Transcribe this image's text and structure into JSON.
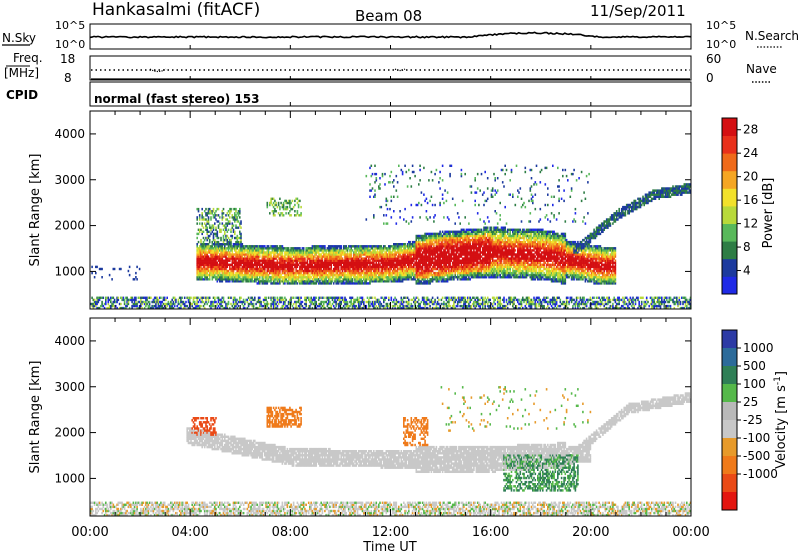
{
  "header": {
    "station": "Hankasalmi (fitACF)",
    "beam": "Beam 08",
    "date": "11/Sep/2011"
  },
  "strip_labels": {
    "nsky": "N.Sky",
    "freq_line1": "Freq.",
    "freq_line2": "[MHz]",
    "cpid": "CPID",
    "nsearch": "N.Search",
    "nave": "Nave",
    "nsky_tick_top": "10^5",
    "nsky_tick_bottom": "10^0",
    "freq_tick_top": "18",
    "freq_tick_bottom": "8",
    "nave_tick_top": "60",
    "nave_tick_bottom": "0",
    "cpid_text": "normal (fast stereo) 153"
  },
  "colors": {
    "power_scale": [
      "#1f2ae6",
      "#1c3a9e",
      "#2e7d45",
      "#58b85a",
      "#b8d93a",
      "#f2e12b",
      "#f5a623",
      "#ef6a1a",
      "#e8301b",
      "#d40f12"
    ],
    "velocity_scale": [
      "#2c3aa5",
      "#2c6b9a",
      "#2f7f56",
      "#55b84a",
      "#b9b9b9",
      "#c8c8c8",
      "#e79a2a",
      "#ef7a1a",
      "#ea4a16",
      "#e3150f"
    ]
  },
  "chart_data": [
    {
      "type": "heatmap",
      "panel": "power",
      "ylabel": "Slant Range [km]",
      "xlabel": "Time UT",
      "xlim": [
        0,
        24
      ],
      "ylim": [
        180,
        4500
      ],
      "xticks": [
        "00:00",
        "04:00",
        "08:00",
        "12:00",
        "16:00",
        "20:00",
        "00:00"
      ],
      "yticks": [
        1000,
        2000,
        3000,
        4000
      ],
      "colorbar": {
        "label": "Power [dB]",
        "ticks": [
          4,
          8,
          12,
          16,
          20,
          24,
          28
        ],
        "range": [
          0,
          30
        ]
      },
      "features": [
        {
          "name": "main echo band",
          "x": [
            4.5,
            8,
            12,
            14,
            16,
            18,
            20.5
          ],
          "y": [
            1200,
            1100,
            1150,
            1300,
            1400,
            1350,
            1100
          ]
        },
        {
          "name": "upper rising band",
          "x": [
            19.5,
            21,
            22.5,
            24
          ],
          "y": [
            1500,
            2200,
            2650,
            2800
          ]
        },
        {
          "name": "near-range clutter",
          "x": [
            0,
            24
          ],
          "y": [
            300,
            300
          ]
        }
      ]
    },
    {
      "type": "heatmap",
      "panel": "velocity",
      "ylabel": "Slant Range [km]",
      "xlabel": "Time UT",
      "xlim": [
        0,
        24
      ],
      "ylim": [
        180,
        4500
      ],
      "xticks": [
        "00:00",
        "04:00",
        "08:00",
        "12:00",
        "16:00",
        "20:00",
        "00:00"
      ],
      "yticks": [
        1000,
        2000,
        3000,
        4000
      ],
      "colorbar": {
        "label": "Velocity [m s^-1]",
        "ticks": [
          "1000",
          "500",
          "100",
          "25",
          "-25",
          "-100",
          "-500",
          "-1000"
        ]
      },
      "features": [
        {
          "name": "ground scatter band",
          "x": [
            4,
            8,
            12,
            16,
            19.5
          ],
          "y": [
            1900,
            1450,
            1400,
            1400,
            1500
          ]
        },
        {
          "name": "upper ground scatter",
          "x": [
            19.5,
            21.5,
            24
          ],
          "y": [
            1600,
            2500,
            2750
          ]
        },
        {
          "name": "near-range band",
          "x": [
            0,
            24
          ],
          "y": [
            350,
            350
          ]
        }
      ]
    }
  ]
}
